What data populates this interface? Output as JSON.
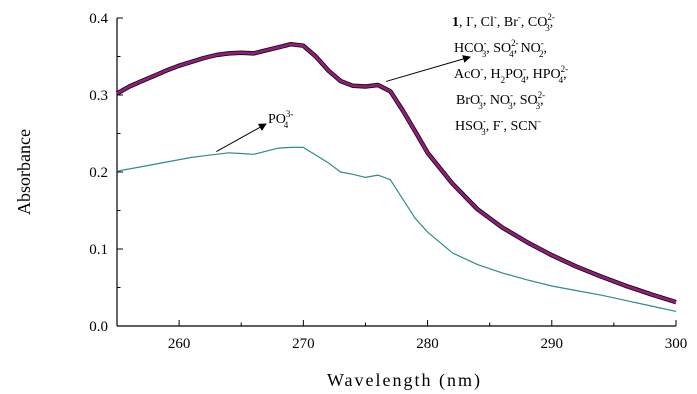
{
  "chart_data": {
    "type": "line",
    "xlabel": "Wavelength (nm)",
    "ylabel": "Absorbance",
    "xlim": [
      255,
      300
    ],
    "ylim": [
      0,
      0.4
    ],
    "x_ticks": [
      260,
      270,
      280,
      290,
      300
    ],
    "y_ticks": [
      0.0,
      0.1,
      0.2,
      0.3,
      0.4
    ],
    "y_tick_labels": [
      "0.0",
      "0.1",
      "0.2",
      "0.3",
      "0.4"
    ],
    "grid": false,
    "series": [
      {
        "color": "#7a1fa2",
        "x": [
          255,
          256,
          257,
          258,
          259,
          260,
          261,
          262,
          263,
          264,
          265,
          266,
          267,
          268,
          269,
          270,
          271,
          272,
          273,
          274,
          275,
          276,
          277,
          278,
          279,
          280,
          282,
          284,
          286,
          288,
          290,
          292,
          294,
          296,
          298,
          300
        ],
        "y": [
          0.302,
          0.311,
          0.318,
          0.325,
          0.332,
          0.338,
          0.343,
          0.348,
          0.352,
          0.354,
          0.355,
          0.354,
          0.358,
          0.362,
          0.366,
          0.364,
          0.35,
          0.332,
          0.318,
          0.312,
          0.311,
          0.313,
          0.305,
          0.28,
          0.253,
          0.225,
          0.185,
          0.152,
          0.128,
          0.109,
          0.092,
          0.077,
          0.064,
          0.052,
          0.041,
          0.031
        ]
      },
      {
        "color": "#2e8b8b",
        "x": [
          255,
          257,
          259,
          261,
          262,
          263,
          264,
          265,
          266,
          267,
          268,
          269,
          270,
          271,
          272,
          273,
          274,
          275,
          276,
          277,
          278,
          279,
          280,
          282,
          284,
          286,
          288,
          290,
          292,
          294,
          296,
          298,
          300
        ],
        "y": [
          0.201,
          0.207,
          0.213,
          0.219,
          0.221,
          0.223,
          0.225,
          0.224,
          0.223,
          0.227,
          0.231,
          0.232,
          0.232,
          0.222,
          0.212,
          0.2,
          0.197,
          0.193,
          0.196,
          0.19,
          0.165,
          0.14,
          0.122,
          0.095,
          0.08,
          0.069,
          0.06,
          0.052,
          0.046,
          0.04,
          0.033,
          0.026,
          0.019
        ]
      }
    ],
    "annotations": {
      "po4": {
        "base": "PO",
        "sub": "4",
        "sup": "3-",
        "arrow_from": [
          263,
          0.224
        ]
      },
      "others": {
        "lines": [
          [
            {
              "t": "1",
              "b": true
            },
            {
              "t": ", I"
            },
            {
              "sup": "-"
            },
            {
              "t": ", Cl"
            },
            {
              "sup": "-"
            },
            {
              "t": ", Br"
            },
            {
              "sup": "-"
            },
            {
              "t": ", CO"
            },
            {
              "sub": "3",
              "sup": "2-"
            },
            {
              "t": ","
            }
          ],
          [
            {
              "t": "HCO"
            },
            {
              "sub": "3",
              "sup": "-"
            },
            {
              "t": ", SO"
            },
            {
              "sub": "4",
              "sup": "2-"
            },
            {
              "t": ", NO"
            },
            {
              "sub": "2",
              "sup": "-"
            },
            {
              "t": ","
            }
          ],
          [
            {
              "t": "AcO"
            },
            {
              "sup": "-"
            },
            {
              "t": ", H"
            },
            {
              "sub": "2"
            },
            {
              "t": "PO"
            },
            {
              "sub": "4",
              "sup": "-"
            },
            {
              "t": ", HPO"
            },
            {
              "sub": "4",
              "sup": "2-"
            },
            {
              "t": ","
            }
          ],
          [
            {
              "t": "BrO"
            },
            {
              "sub": "3",
              "sup": "-"
            },
            {
              "t": ", NO"
            },
            {
              "sub": "3",
              "sup": "-"
            },
            {
              "t": ", SO"
            },
            {
              "sub": "3",
              "sup": "2-"
            },
            {
              "t": ","
            }
          ],
          [
            {
              "t": "HSO"
            },
            {
              "sub": "3",
              "sup": "-"
            },
            {
              "t": ", F"
            },
            {
              "sup": "-"
            },
            {
              "t": ", SCN"
            },
            {
              "sup": "-"
            }
          ]
        ],
        "arrow_from": [
          276.5,
          0.315
        ]
      }
    }
  }
}
